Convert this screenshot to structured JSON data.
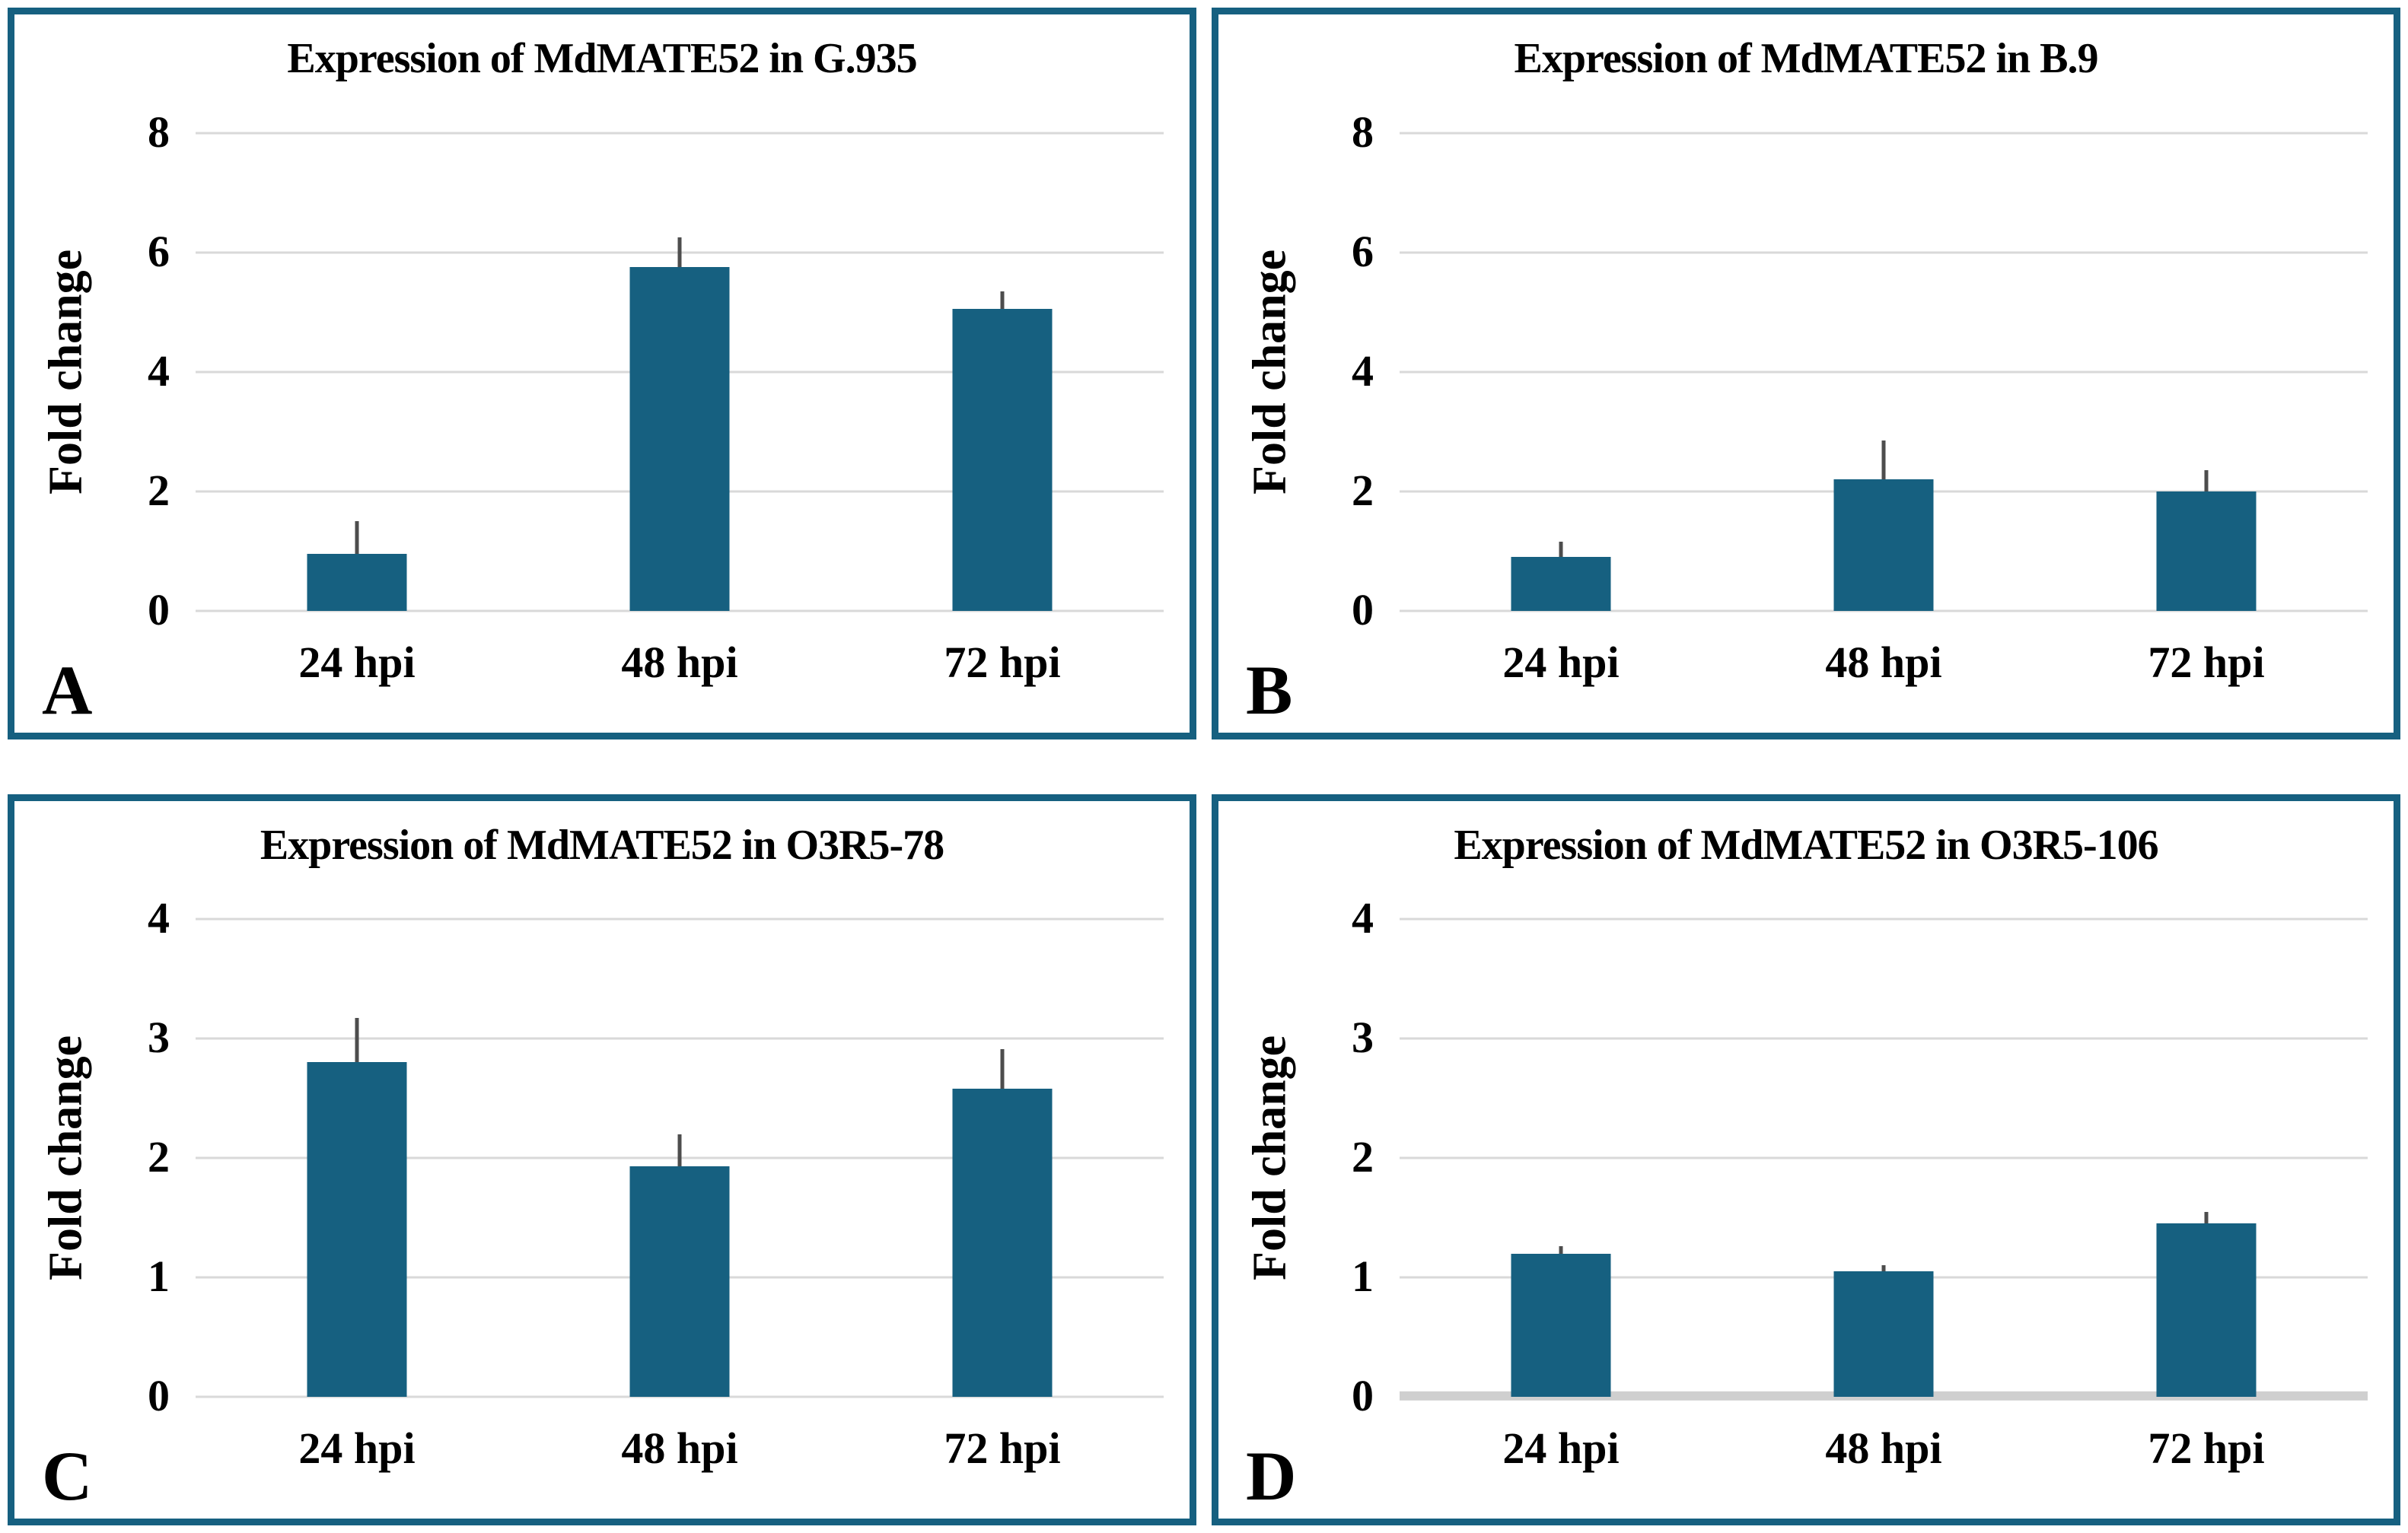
{
  "figure": {
    "y_axis_label": "Fold change",
    "x_categories": [
      "24 hpi",
      "48 hpi",
      "72 hpi"
    ]
  },
  "colors": {
    "accent": "#166080",
    "gridline": "#d9d9d9",
    "thick_baseline": "#cfcfcf",
    "error_bar": "#4d4d4d",
    "text": "#000000"
  },
  "chart_data": [
    {
      "panel_label": "A",
      "type": "bar",
      "title": "Expression of MdMATE52 in G.935",
      "ylabel": "Fold change",
      "xlabel": "",
      "categories": [
        "24 hpi",
        "48 hpi",
        "72 hpi"
      ],
      "values": [
        0.95,
        5.75,
        5.05
      ],
      "error_bars_upper": [
        0.55,
        0.5,
        0.3
      ],
      "ylim": [
        0,
        8
      ],
      "yticks": [
        8,
        6,
        4,
        2,
        0
      ],
      "grid": true,
      "thick_baseline": false,
      "legend": false
    },
    {
      "panel_label": "B",
      "type": "bar",
      "title": "Expression of MdMATE52 in B.9",
      "ylabel": "Fold change",
      "xlabel": "",
      "categories": [
        "24 hpi",
        "48 hpi",
        "72 hpi"
      ],
      "values": [
        0.9,
        2.2,
        2.0
      ],
      "error_bars_upper": [
        0.25,
        0.65,
        0.35
      ],
      "ylim": [
        0,
        8
      ],
      "yticks": [
        8,
        6,
        4,
        2,
        0
      ],
      "grid": true,
      "thick_baseline": false,
      "legend": false
    },
    {
      "panel_label": "C",
      "type": "bar",
      "title": "Expression of MdMATE52 in O3R5-78",
      "ylabel": "Fold change",
      "xlabel": "",
      "categories": [
        "24 hpi",
        "48 hpi",
        "72 hpi"
      ],
      "values": [
        2.8,
        1.93,
        2.58
      ],
      "error_bars_upper": [
        0.37,
        0.27,
        0.33
      ],
      "ylim": [
        0,
        4
      ],
      "yticks": [
        4,
        3,
        2,
        1,
        0
      ],
      "grid": true,
      "thick_baseline": false,
      "legend": false
    },
    {
      "panel_label": "D",
      "type": "bar",
      "title": "Expression of MdMATE52 in O3R5-106",
      "ylabel": "Fold change",
      "xlabel": "",
      "categories": [
        "24 hpi",
        "48 hpi",
        "72 hpi"
      ],
      "values": [
        1.2,
        1.05,
        1.45
      ],
      "error_bars_upper": [
        0.06,
        0.05,
        0.1
      ],
      "ylim": [
        0,
        4
      ],
      "yticks": [
        4,
        3,
        2,
        1,
        0
      ],
      "grid": true,
      "thick_baseline": true,
      "legend": false
    }
  ]
}
